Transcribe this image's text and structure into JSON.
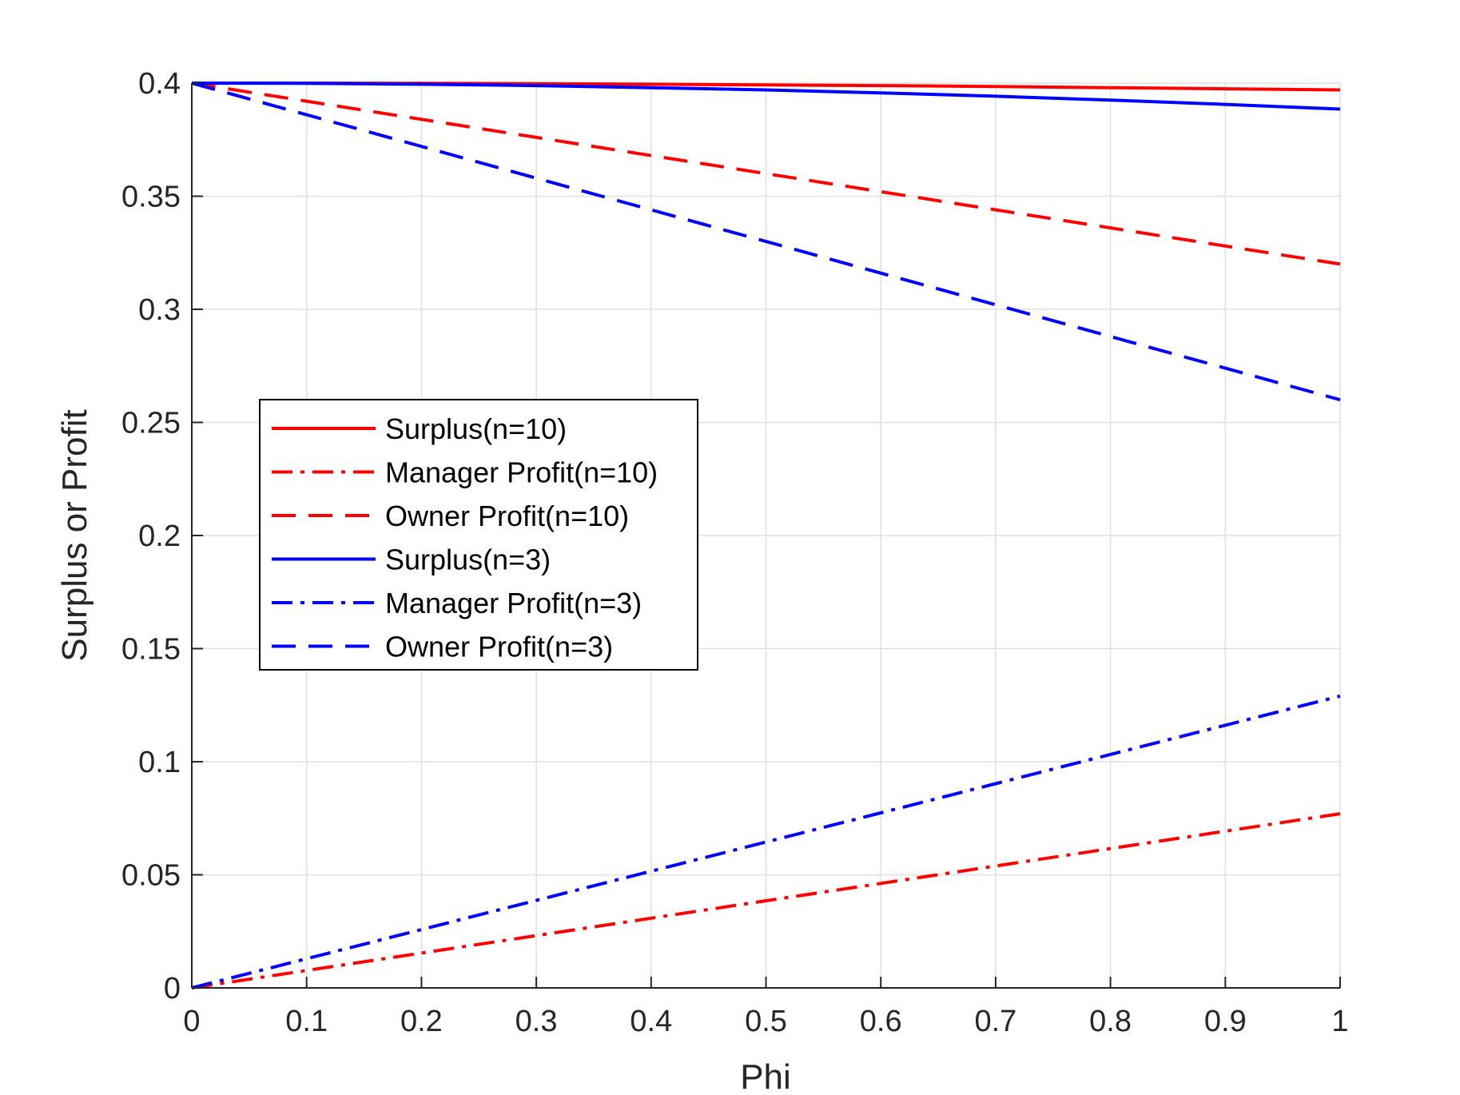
{
  "chart_data": {
    "type": "line",
    "xlabel": "Phi",
    "ylabel": "Surplus or Profit",
    "xlim": [
      0,
      1
    ],
    "ylim": [
      0,
      0.4
    ],
    "xticks": [
      0,
      0.1,
      0.2,
      0.3,
      0.4,
      0.5,
      0.6,
      0.7,
      0.8,
      0.9,
      1
    ],
    "xtick_labels": [
      "0",
      "0.1",
      "0.2",
      "0.3",
      "0.4",
      "0.5",
      "0.6",
      "0.7",
      "0.8",
      "0.9",
      "1"
    ],
    "yticks": [
      0,
      0.05,
      0.1,
      0.15,
      0.2,
      0.25,
      0.3,
      0.35,
      0.4
    ],
    "ytick_labels": [
      "0",
      "0.05",
      "0.1",
      "0.15",
      "0.2",
      "0.25",
      "0.3",
      "0.35",
      "0.4"
    ],
    "grid": true,
    "legend_position": "center-left",
    "x": [
      0,
      0.1,
      0.2,
      0.3,
      0.4,
      0.5,
      0.6,
      0.7,
      0.8,
      0.9,
      1
    ],
    "series": [
      {
        "name": "Surplus(n=10)",
        "color": "#ff0000",
        "style": "solid",
        "values": [
          0.4,
          0.4,
          0.3999,
          0.3997,
          0.3995,
          0.3992,
          0.3989,
          0.3985,
          0.398,
          0.3975,
          0.397
        ]
      },
      {
        "name": "Manager Profit(n=10)",
        "color": "#ff0000",
        "style": "dashdot",
        "values": [
          0,
          0.0077,
          0.0154,
          0.0231,
          0.0308,
          0.0385,
          0.0462,
          0.0539,
          0.0616,
          0.0693,
          0.077
        ]
      },
      {
        "name": "Owner Profit(n=10)",
        "color": "#ff0000",
        "style": "dashed",
        "values": [
          0.4,
          0.392,
          0.384,
          0.376,
          0.368,
          0.36,
          0.352,
          0.344,
          0.336,
          0.328,
          0.32
        ]
      },
      {
        "name": "Surplus(n=3)",
        "color": "#0000ff",
        "style": "solid",
        "values": [
          0.4,
          0.3999,
          0.3995,
          0.3989,
          0.398,
          0.397,
          0.3957,
          0.3942,
          0.3925,
          0.3906,
          0.3885
        ]
      },
      {
        "name": "Manager Profit(n=3)",
        "color": "#0000ff",
        "style": "dashdot",
        "values": [
          0,
          0.0129,
          0.0258,
          0.0387,
          0.0516,
          0.0645,
          0.0774,
          0.0903,
          0.1032,
          0.1161,
          0.129
        ]
      },
      {
        "name": "Owner Profit(n=3)",
        "color": "#0000ff",
        "style": "dashed",
        "values": [
          0.4,
          0.386,
          0.372,
          0.358,
          0.344,
          0.33,
          0.316,
          0.302,
          0.288,
          0.274,
          0.26
        ]
      }
    ]
  }
}
